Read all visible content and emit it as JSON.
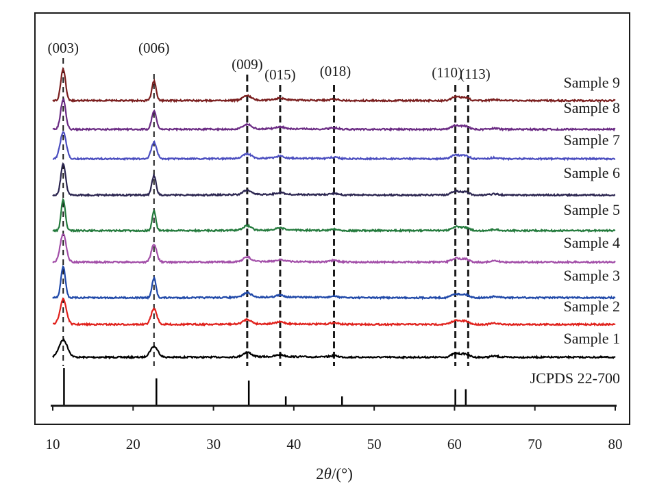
{
  "chart_data": {
    "type": "line",
    "title": "",
    "xlabel": {
      "prefix": "2",
      "symbol": "θ",
      "unit": "/(°)"
    },
    "ylabel": "",
    "xlim": [
      10,
      80
    ],
    "xticks": [
      10,
      20,
      30,
      40,
      50,
      60,
      70,
      80
    ],
    "xtick_labels": [
      "10",
      "20",
      "30",
      "40",
      "50",
      "60",
      "70",
      "80"
    ],
    "grid": false,
    "legend": "none",
    "series": [
      {
        "name": "Sample 1",
        "color": "#000000",
        "peak_height": 0.55,
        "peak_width": 1.35
      },
      {
        "name": "Sample 2",
        "color": "#e0201b",
        "peak_height": 0.8,
        "peak_width": 1.0
      },
      {
        "name": "Sample 3",
        "color": "#1f48a8",
        "peak_height": 1.0,
        "peak_width": 0.7
      },
      {
        "name": "Sample 4",
        "color": "#a24ea8",
        "peak_height": 0.9,
        "peak_width": 0.95
      },
      {
        "name": "Sample 5",
        "color": "#237a3c",
        "peak_height": 1.0,
        "peak_width": 0.65
      },
      {
        "name": "Sample 6",
        "color": "#2a244f",
        "peak_height": 1.0,
        "peak_width": 0.75
      },
      {
        "name": "Sample 7",
        "color": "#4a4dbf",
        "peak_height": 0.85,
        "peak_width": 0.95
      },
      {
        "name": "Sample 8",
        "color": "#6a2a83",
        "peak_height": 0.95,
        "peak_width": 0.8
      },
      {
        "name": "Sample 9",
        "color": "#7a1e1e",
        "peak_height": 1.0,
        "peak_width": 0.75
      }
    ],
    "peaks": [
      {
        "x": 11.3,
        "rel": 1.0
      },
      {
        "x": 22.6,
        "rel": 0.62
      },
      {
        "x": 34.2,
        "rel": 0.17
      },
      {
        "x": 38.3,
        "rel": 0.07
      },
      {
        "x": 45.0,
        "rel": 0.05
      },
      {
        "x": 60.1,
        "rel": 0.14
      },
      {
        "x": 61.3,
        "rel": 0.12
      },
      {
        "x": 65.0,
        "rel": 0.04
      }
    ],
    "reference": {
      "name": "JCPDS 22-700",
      "color": "#000000",
      "sticks": [
        {
          "x": 11.4,
          "rel": 1.0
        },
        {
          "x": 22.9,
          "rel": 0.73
        },
        {
          "x": 34.4,
          "rel": 0.67
        },
        {
          "x": 39.0,
          "rel": 0.25
        },
        {
          "x": 46.0,
          "rel": 0.25
        },
        {
          "x": 60.1,
          "rel": 0.44
        },
        {
          "x": 61.4,
          "rel": 0.44
        }
      ]
    },
    "annotations": [
      {
        "label": "(003)",
        "x": 11.3
      },
      {
        "label": "(006)",
        "x": 22.6
      },
      {
        "label": "(009)",
        "x": 34.2
      },
      {
        "label": "(015)",
        "x": 38.3
      },
      {
        "label": "(018)",
        "x": 45.0
      },
      {
        "label": "(110)",
        "x": 60.1
      },
      {
        "label": "(113)",
        "x": 61.7
      }
    ]
  }
}
